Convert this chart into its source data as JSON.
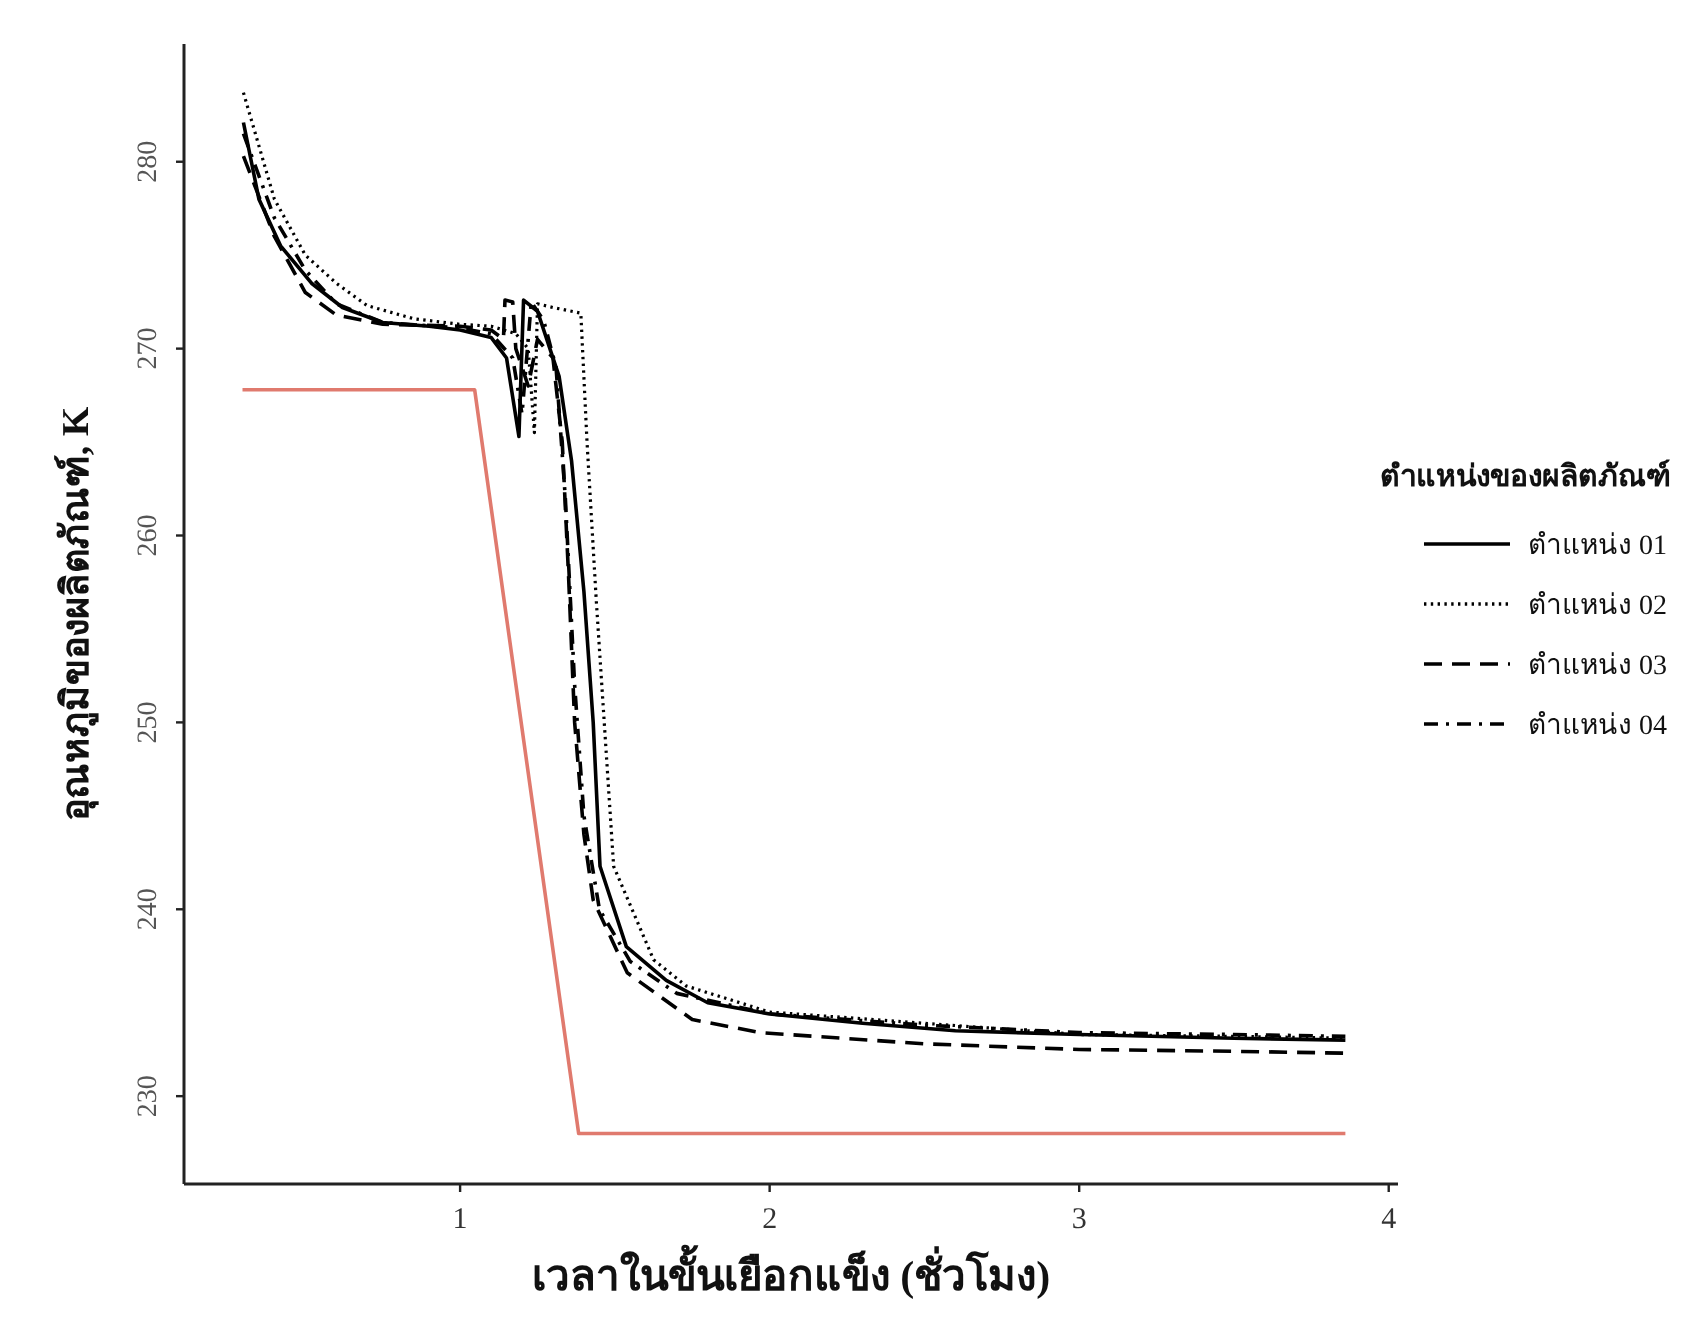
{
  "chart_data": {
    "type": "line",
    "xlabel": "เวลาในขั้นเยือกแข็ง (ชั่วโมง)",
    "ylabel": "อุณหภูมิของผลิตภัณฑ์, K",
    "legend_title": "ตำแหน่งของผลิตภัณฑ์",
    "legend": "right",
    "grid": false,
    "xlim": [
      0.108,
      4.03
    ],
    "ylim": [
      225.3,
      286.3
    ],
    "xticks": [
      1,
      2,
      3,
      4
    ],
    "yticks": [
      230,
      240,
      250,
      260,
      270,
      280
    ],
    "series": [
      {
        "name": "ตำแหน่ง 01",
        "color": "#000000",
        "line_style": "solid",
        "x": [
          0.3,
          0.35,
          0.42,
          0.52,
          0.62,
          0.75,
          0.9,
          1.0,
          1.1,
          1.15,
          1.19,
          1.205,
          1.25,
          1.29,
          1.32,
          1.36,
          1.4,
          1.43,
          1.452,
          1.537,
          1.666,
          1.8,
          2.0,
          2.3,
          2.6,
          3.0,
          3.5,
          3.86
        ],
        "values": [
          282.1,
          278.0,
          275.5,
          273.5,
          272.2,
          271.4,
          271.2,
          271.0,
          270.6,
          269.5,
          265.3,
          272.6,
          272.0,
          270.0,
          268.5,
          264.0,
          257.0,
          250.0,
          242.3,
          238.0,
          236.2,
          235.0,
          234.4,
          233.9,
          233.5,
          233.3,
          233.1,
          233.0
        ]
      },
      {
        "name": "ตำแหน่ง 02",
        "color": "#000000",
        "line_style": "dotted",
        "x": [
          0.3,
          0.4,
          0.5,
          0.6,
          0.7,
          0.85,
          1.0,
          1.1,
          1.18,
          1.22,
          1.24,
          1.25,
          1.3,
          1.39,
          1.41,
          1.44,
          1.496,
          1.625,
          1.73,
          2.0,
          2.5,
          3.0,
          3.5,
          3.86
        ],
        "values": [
          283.7,
          278.0,
          275.0,
          273.5,
          272.3,
          271.6,
          271.3,
          271.2,
          270.8,
          270.0,
          265.5,
          272.4,
          272.2,
          271.9,
          265.0,
          256.5,
          242.3,
          237.3,
          235.9,
          234.5,
          233.9,
          233.3,
          233.2,
          233.1
        ]
      },
      {
        "name": "ตำแหน่ง 03",
        "color": "#000000",
        "line_style": "dashed",
        "x": [
          0.3,
          0.4,
          0.5,
          0.6,
          0.75,
          1.0,
          1.1,
          1.14,
          1.145,
          1.17,
          1.18,
          1.22,
          1.25,
          1.3,
          1.33,
          1.35,
          1.37,
          1.4,
          1.43,
          1.54,
          1.75,
          1.97,
          2.5,
          3.0,
          3.5,
          3.86
        ],
        "values": [
          280.3,
          276.0,
          273.0,
          271.8,
          271.3,
          271.2,
          271.0,
          270.5,
          272.6,
          272.5,
          270.0,
          268.0,
          270.5,
          269.5,
          265.0,
          258.0,
          250.0,
          244.0,
          240.5,
          236.6,
          234.1,
          233.4,
          232.8,
          232.5,
          232.4,
          232.3
        ]
      },
      {
        "name": "ตำแหน่ง 04",
        "color": "#000000",
        "line_style": "dashdot",
        "x": [
          0.3,
          0.4,
          0.5,
          0.6,
          0.75,
          1.0,
          1.1,
          1.17,
          1.2,
          1.23,
          1.27,
          1.31,
          1.34,
          1.37,
          1.4,
          1.45,
          1.55,
          1.7,
          2.0,
          2.5,
          3.0,
          3.5,
          3.86
        ],
        "values": [
          281.5,
          277.0,
          274.2,
          272.4,
          271.4,
          271.1,
          270.8,
          269.5,
          266.5,
          272.5,
          271.5,
          269.0,
          262.0,
          252.0,
          245.0,
          240.0,
          237.2,
          235.5,
          234.4,
          233.8,
          233.4,
          233.3,
          233.2
        ]
      },
      {
        "color": "#e07a6e",
        "line_style": "solid",
        "x": [
          0.297,
          1.047,
          1.383,
          3.86
        ],
        "values": [
          267.8,
          267.8,
          228.0,
          228.0
        ]
      }
    ]
  }
}
